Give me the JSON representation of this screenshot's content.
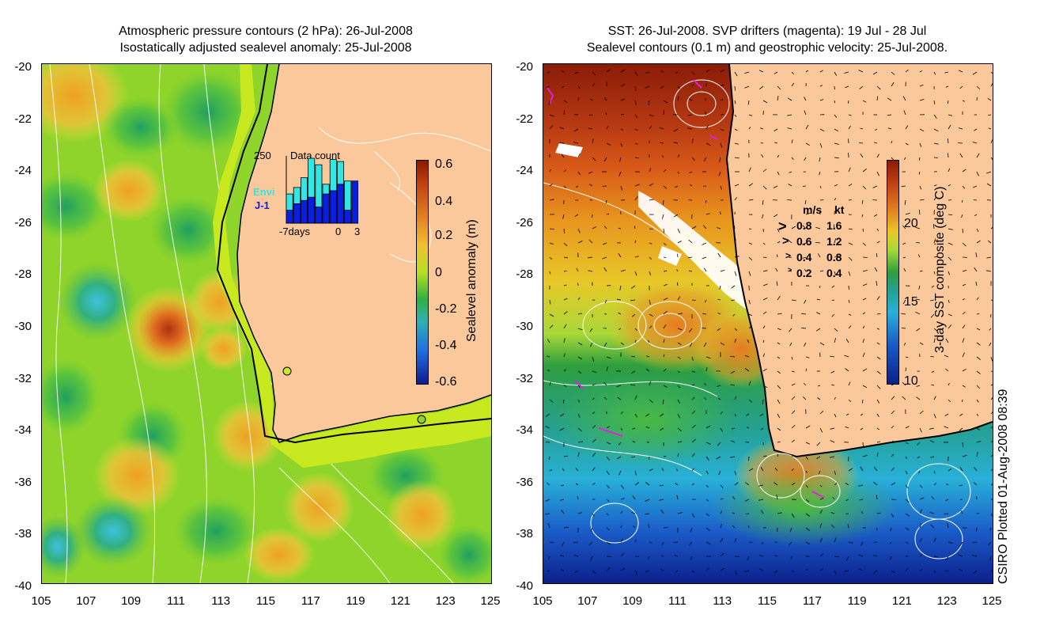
{
  "left_panel": {
    "title_line1": "Atmospheric pressure contours (2 hPa): 26-Jul-2008",
    "title_line2": "Isostatically adjusted sealevel anomaly: 25-Jul-2008",
    "y_ticks": [
      "-20",
      "-22",
      "-24",
      "-26",
      "-28",
      "-30",
      "-32",
      "-34",
      "-36",
      "-38",
      "-40"
    ],
    "x_ticks": [
      "105",
      "107",
      "109",
      "111",
      "113",
      "115",
      "117",
      "119",
      "121",
      "123",
      "125"
    ],
    "colorbar_label": "Sealevel anomaly (m)",
    "colorbar_ticks": [
      "0.6",
      "0.4",
      "0.2",
      "0",
      "-0.2",
      "-0.4",
      "-0.6"
    ],
    "inset": {
      "count_top": "250",
      "title": "Data count",
      "sat1": "Envi",
      "sat2": "J-1",
      "x_left": "-7days",
      "x_zero": "0",
      "x_right": "3",
      "envi_counts": [
        0.45,
        0.55,
        0.7,
        1.0,
        0.9,
        0.6,
        0.98,
        0.95,
        0.65,
        0.4
      ],
      "j1_counts": [
        0.2,
        0.3,
        0.35,
        0.4,
        0.25,
        0.45,
        0.5,
        0.6,
        0.2,
        0.65
      ]
    },
    "colors": {
      "envi": "#33e6e6",
      "j1": "#0a1ee0"
    }
  },
  "right_panel": {
    "title_line1": "SST: 26-Jul-2008. SVP drifters (magenta): 19 Jul - 28 Jul",
    "title_line2": "Sealevel contours (0.1 m) and geostrophic velocity: 25-Jul-2008.",
    "y_ticks": [
      "-20",
      "-22",
      "-24",
      "-26",
      "-28",
      "-30",
      "-32",
      "-34",
      "-36",
      "-38",
      "-40"
    ],
    "x_ticks": [
      "105",
      "107",
      "109",
      "111",
      "113",
      "115",
      "117",
      "119",
      "121",
      "123",
      "125"
    ],
    "colorbar_label": "3-day SST composite (deg C)",
    "colorbar_ticks": [
      "20",
      "15",
      "10"
    ],
    "legend": {
      "header_ms": "m/s",
      "header_kt": "kt",
      "rows": [
        {
          "ms": "0.8",
          "kt": "1.6"
        },
        {
          "ms": "0.6",
          "kt": "1.2"
        },
        {
          "ms": "0.4",
          "kt": "0.8"
        },
        {
          "ms": "0.2",
          "kt": "0.4"
        }
      ]
    }
  },
  "credit": "CSIRO Plotted 01-Aug-2008 08:39"
}
